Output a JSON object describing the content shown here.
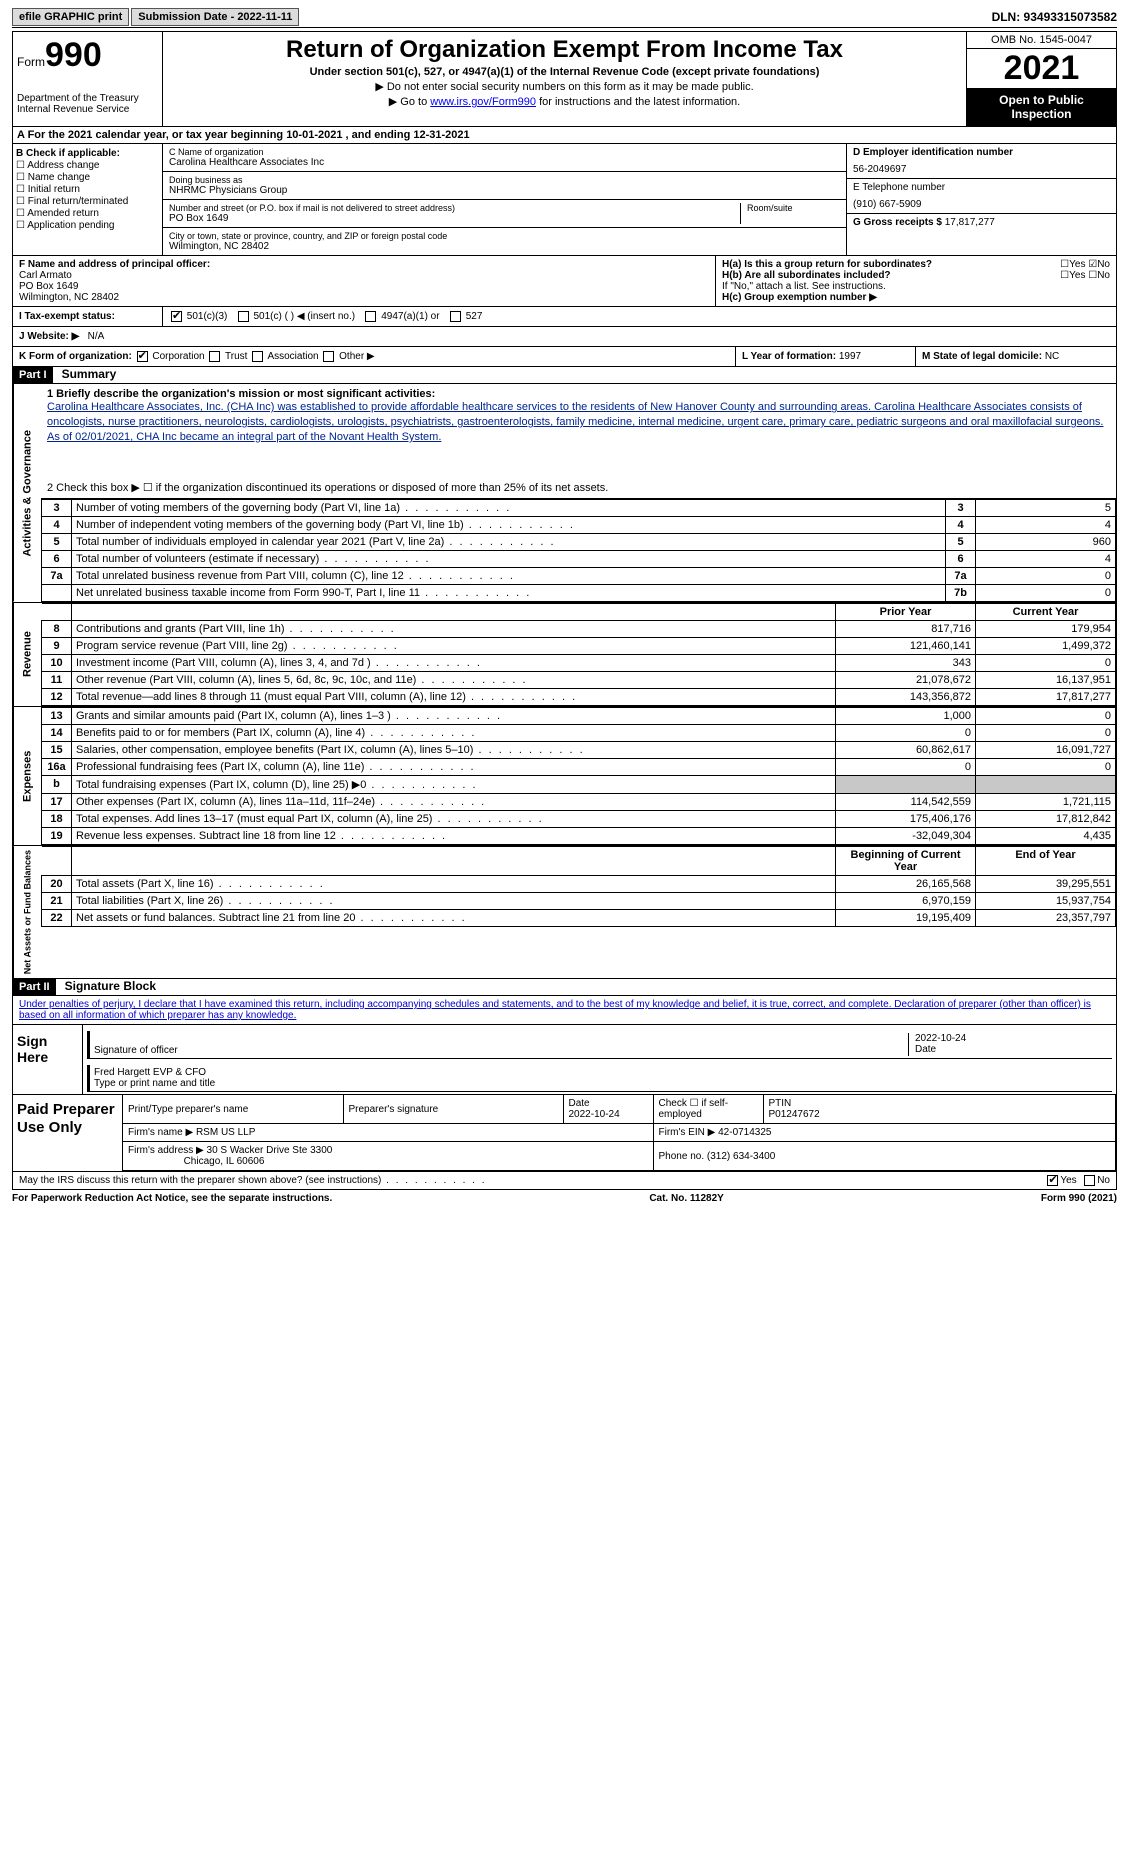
{
  "topbar": {
    "efile": "efile GRAPHIC print",
    "submission": "Submission Date - 2022-11-11",
    "dln": "DLN: 93493315073582"
  },
  "header": {
    "form": "Form",
    "num": "990",
    "dept": "Department of the Treasury",
    "irs": "Internal Revenue Service",
    "title": "Return of Organization Exempt From Income Tax",
    "sub": "Under section 501(c), 527, or 4947(a)(1) of the Internal Revenue Code (except private foundations)",
    "note1": "▶ Do not enter social security numbers on this form as it may be made public.",
    "note2_pre": "▶ Go to ",
    "note2_link": "www.irs.gov/Form990",
    "note2_post": " for instructions and the latest information.",
    "omb": "OMB No. 1545-0047",
    "year": "2021",
    "open": "Open to Public Inspection"
  },
  "a": "A For the 2021 calendar year, or tax year beginning 10-01-2021    , and ending 12-31-2021",
  "b": {
    "label": "B Check if applicable:",
    "opts": [
      "Address change",
      "Name change",
      "Initial return",
      "Final return/terminated",
      "Amended return",
      "Application pending"
    ]
  },
  "c": {
    "name_lbl": "C Name of organization",
    "name": "Carolina Healthcare Associates Inc",
    "dba_lbl": "Doing business as",
    "dba": "NHRMC Physicians Group",
    "addr_lbl": "Number and street (or P.O. box if mail is not delivered to street address)",
    "room_lbl": "Room/suite",
    "addr": "PO Box 1649",
    "city_lbl": "City or town, state or province, country, and ZIP or foreign postal code",
    "city": "Wilmington, NC  28402"
  },
  "d": {
    "lbl": "D Employer identification number",
    "val": "56-2049697"
  },
  "e": {
    "lbl": "E Telephone number",
    "val": "(910) 667-5909"
  },
  "g": {
    "lbl": "G Gross receipts $",
    "val": "17,817,277"
  },
  "f": {
    "lbl": "F  Name and address of principal officer:",
    "name": "Carl Armato",
    "addr": "PO Box 1649",
    "city": "Wilmington, NC  28402"
  },
  "h": {
    "a": "H(a)  Is this a group return for subordinates?",
    "b": "H(b)  Are all subordinates included?",
    "note": "If \"No,\" attach a list. See instructions.",
    "c": "H(c)  Group exemption number ▶"
  },
  "i": {
    "lbl": "I    Tax-exempt status:",
    "o1": "501(c)(3)",
    "o2": "501(c) (  ) ◀ (insert no.)",
    "o3": "4947(a)(1) or",
    "o4": "527"
  },
  "j": {
    "lbl": "J   Website: ▶",
    "val": "N/A"
  },
  "k": {
    "lbl": "K Form of organization:",
    "o1": "Corporation",
    "o2": "Trust",
    "o3": "Association",
    "o4": "Other ▶"
  },
  "l": {
    "lbl": "L Year of formation:",
    "val": "1997"
  },
  "m": {
    "lbl": "M State of legal domicile:",
    "val": "NC"
  },
  "part1": {
    "hdr": "Part I",
    "title": "Summary",
    "line1_lbl": "1  Briefly describe the organization's mission or most significant activities:",
    "mission": "Carolina Healthcare Associates, Inc. (CHA Inc) was established to provide affordable healthcare services to the residents of New Hanover County and surrounding areas. Carolina Healthcare Associates consists of oncologists, nurse practitioners, neurologists, cardiologists, urologists, psychiatrists, gastroenterologists, family medicine, internal medicine, urgent care, primary care, pediatric surgeons and oral maxillofacial surgeons. As of 02/01/2021, CHA Inc became an integral part of the Novant Health System.",
    "line2": "2   Check this box ▶ ☐  if the organization discontinued its operations or disposed of more than 25% of its net assets.",
    "sideA": "Activities & Governance",
    "sideB": "Revenue",
    "sideC": "Expenses",
    "sideD": "Net Assets or Fund Balances",
    "rows_gov": [
      {
        "n": "3",
        "t": "Number of voting members of the governing body (Part VI, line 1a)",
        "b": "3",
        "v": "5"
      },
      {
        "n": "4",
        "t": "Number of independent voting members of the governing body (Part VI, line 1b)",
        "b": "4",
        "v": "4"
      },
      {
        "n": "5",
        "t": "Total number of individuals employed in calendar year 2021 (Part V, line 2a)",
        "b": "5",
        "v": "960"
      },
      {
        "n": "6",
        "t": "Total number of volunteers (estimate if necessary)",
        "b": "6",
        "v": "4"
      },
      {
        "n": "7a",
        "t": "Total unrelated business revenue from Part VIII, column (C), line 12",
        "b": "7a",
        "v": "0"
      },
      {
        "n": "",
        "t": "Net unrelated business taxable income from Form 990-T, Part I, line 11",
        "b": "7b",
        "v": "0"
      }
    ],
    "hdr_prior": "Prior Year",
    "hdr_curr": "Current Year",
    "rows_rev": [
      {
        "n": "8",
        "t": "Contributions and grants (Part VIII, line 1h)",
        "p": "817,716",
        "c": "179,954"
      },
      {
        "n": "9",
        "t": "Program service revenue (Part VIII, line 2g)",
        "p": "121,460,141",
        "c": "1,499,372"
      },
      {
        "n": "10",
        "t": "Investment income (Part VIII, column (A), lines 3, 4, and 7d )",
        "p": "343",
        "c": "0"
      },
      {
        "n": "11",
        "t": "Other revenue (Part VIII, column (A), lines 5, 6d, 8c, 9c, 10c, and 11e)",
        "p": "21,078,672",
        "c": "16,137,951"
      },
      {
        "n": "12",
        "t": "Total revenue—add lines 8 through 11 (must equal Part VIII, column (A), line 12)",
        "p": "143,356,872",
        "c": "17,817,277"
      }
    ],
    "rows_exp": [
      {
        "n": "13",
        "t": "Grants and similar amounts paid (Part IX, column (A), lines 1–3 )",
        "p": "1,000",
        "c": "0"
      },
      {
        "n": "14",
        "t": "Benefits paid to or for members (Part IX, column (A), line 4)",
        "p": "0",
        "c": "0"
      },
      {
        "n": "15",
        "t": "Salaries, other compensation, employee benefits (Part IX, column (A), lines 5–10)",
        "p": "60,862,617",
        "c": "16,091,727"
      },
      {
        "n": "16a",
        "t": "Professional fundraising fees (Part IX, column (A), line 11e)",
        "p": "0",
        "c": "0"
      },
      {
        "n": "b",
        "t": "Total fundraising expenses (Part IX, column (D), line 25) ▶0",
        "p": "",
        "c": "",
        "grey": true
      },
      {
        "n": "17",
        "t": "Other expenses (Part IX, column (A), lines 11a–11d, 11f–24e)",
        "p": "114,542,559",
        "c": "1,721,115"
      },
      {
        "n": "18",
        "t": "Total expenses. Add lines 13–17 (must equal Part IX, column (A), line 25)",
        "p": "175,406,176",
        "c": "17,812,842"
      },
      {
        "n": "19",
        "t": "Revenue less expenses. Subtract line 18 from line 12",
        "p": "-32,049,304",
        "c": "4,435"
      }
    ],
    "hdr_beg": "Beginning of Current Year",
    "hdr_end": "End of Year",
    "rows_net": [
      {
        "n": "20",
        "t": "Total assets (Part X, line 16)",
        "p": "26,165,568",
        "c": "39,295,551"
      },
      {
        "n": "21",
        "t": "Total liabilities (Part X, line 26)",
        "p": "6,970,159",
        "c": "15,937,754"
      },
      {
        "n": "22",
        "t": "Net assets or fund balances. Subtract line 21 from line 20",
        "p": "19,195,409",
        "c": "23,357,797"
      }
    ]
  },
  "part2": {
    "hdr": "Part II",
    "title": "Signature Block",
    "decl": "Under penalties of perjury, I declare that I have examined this return, including accompanying schedules and statements, and to the best of my knowledge and belief, it is true, correct, and complete. Declaration of preparer (other than officer) is based on all information of which preparer has any knowledge."
  },
  "sign": {
    "here": "Sign Here",
    "sig_lbl": "Signature of officer",
    "date": "2022-10-24",
    "date_lbl": "Date",
    "name": "Fred Hargett EVP & CFO",
    "name_lbl": "Type or print name and title"
  },
  "paid": {
    "hdr": "Paid Preparer Use Only",
    "h1": "Print/Type preparer's name",
    "h2": "Preparer's signature",
    "h3": "Date",
    "h3v": "2022-10-24",
    "h4": "Check ☐ if self-employed",
    "h5": "PTIN",
    "h5v": "P01247672",
    "firm_lbl": "Firm's name    ▶",
    "firm": "RSM US LLP",
    "ein_lbl": "Firm's EIN ▶",
    "ein": "42-0714325",
    "addr_lbl": "Firm's address ▶",
    "addr1": "30 S Wacker Drive Ste 3300",
    "addr2": "Chicago, IL  60606",
    "phone_lbl": "Phone no.",
    "phone": "(312) 634-3400"
  },
  "discuss": "May the IRS discuss this return with the preparer shown above? (see instructions)",
  "yes": "Yes",
  "no": "No",
  "footer": {
    "left": "For Paperwork Reduction Act Notice, see the separate instructions.",
    "mid": "Cat. No. 11282Y",
    "right": "Form 990 (2021)"
  }
}
